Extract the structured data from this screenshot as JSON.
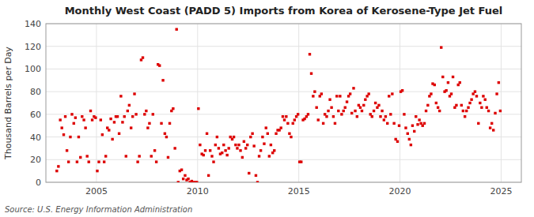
{
  "chart_data": {
    "type": "scatter",
    "title": "Monthly West Coast (PADD 5) Imports from Korea of Kerosene-Type Jet Fuel",
    "y_label": "Thousand Barrels per Day",
    "annotation": "Source: U.S. Energy Information Administration",
    "color": "#dd0000",
    "marker": "square",
    "grid": true,
    "xlim": [
      2002.5,
      2026.0
    ],
    "ylim": [
      0,
      140
    ],
    "xticks": [
      2005,
      2010,
      2015,
      2020,
      2025
    ],
    "yticks": [
      0,
      20,
      40,
      60,
      80,
      100,
      120,
      140
    ],
    "x": [
      2003.04,
      2003.12,
      2003.21,
      2003.29,
      2003.38,
      2003.46,
      2003.54,
      2003.62,
      2003.71,
      2003.79,
      2003.88,
      2003.96,
      2004.04,
      2004.12,
      2004.21,
      2004.29,
      2004.38,
      2004.46,
      2004.54,
      2004.62,
      2004.71,
      2004.79,
      2004.88,
      2004.96,
      2005.04,
      2005.12,
      2005.21,
      2005.29,
      2005.38,
      2005.46,
      2005.54,
      2005.62,
      2005.71,
      2005.79,
      2005.88,
      2005.96,
      2006.04,
      2006.12,
      2006.21,
      2006.29,
      2006.38,
      2006.46,
      2006.54,
      2006.62,
      2006.71,
      2006.79,
      2006.88,
      2006.96,
      2007.04,
      2007.12,
      2007.21,
      2007.29,
      2007.38,
      2007.46,
      2007.54,
      2007.62,
      2007.71,
      2007.79,
      2007.88,
      2007.96,
      2008.04,
      2008.12,
      2008.21,
      2008.29,
      2008.38,
      2008.46,
      2008.54,
      2008.62,
      2008.71,
      2008.79,
      2008.88,
      2008.96,
      2009.04,
      2009.12,
      2009.21,
      2009.29,
      2009.38,
      2009.46,
      2009.54,
      2009.62,
      2009.71,
      2009.79,
      2009.88,
      2009.96,
      2010.04,
      2010.12,
      2010.21,
      2010.29,
      2010.38,
      2010.46,
      2010.54,
      2010.62,
      2010.71,
      2010.79,
      2010.88,
      2010.96,
      2011.04,
      2011.12,
      2011.21,
      2011.29,
      2011.38,
      2011.46,
      2011.54,
      2011.62,
      2011.71,
      2011.79,
      2011.88,
      2011.96,
      2012.04,
      2012.12,
      2012.21,
      2012.29,
      2012.38,
      2012.46,
      2012.54,
      2012.62,
      2012.71,
      2012.79,
      2012.88,
      2012.96,
      2013.04,
      2013.12,
      2013.21,
      2013.29,
      2013.38,
      2013.46,
      2013.54,
      2013.62,
      2013.71,
      2013.79,
      2013.88,
      2013.96,
      2014.04,
      2014.12,
      2014.21,
      2014.29,
      2014.38,
      2014.46,
      2014.54,
      2014.62,
      2014.71,
      2014.79,
      2014.88,
      2014.96,
      2015.04,
      2015.12,
      2015.21,
      2015.29,
      2015.38,
      2015.46,
      2015.54,
      2015.62,
      2015.71,
      2015.79,
      2015.88,
      2015.96,
      2016.04,
      2016.12,
      2016.21,
      2016.29,
      2016.38,
      2016.46,
      2016.54,
      2016.62,
      2016.71,
      2016.79,
      2016.88,
      2016.96,
      2017.04,
      2017.12,
      2017.21,
      2017.29,
      2017.38,
      2017.46,
      2017.54,
      2017.62,
      2017.71,
      2017.79,
      2017.88,
      2017.96,
      2018.04,
      2018.12,
      2018.21,
      2018.29,
      2018.38,
      2018.46,
      2018.54,
      2018.62,
      2018.71,
      2018.79,
      2018.88,
      2018.96,
      2019.04,
      2019.12,
      2019.21,
      2019.29,
      2019.38,
      2019.46,
      2019.54,
      2019.62,
      2019.71,
      2019.79,
      2019.88,
      2019.96,
      2020.04,
      2020.12,
      2020.21,
      2020.29,
      2020.38,
      2020.46,
      2020.54,
      2020.62,
      2020.71,
      2020.79,
      2020.88,
      2020.96,
      2021.04,
      2021.12,
      2021.21,
      2021.29,
      2021.38,
      2021.46,
      2021.54,
      2021.62,
      2021.71,
      2021.79,
      2021.88,
      2021.96,
      2022.04,
      2022.12,
      2022.21,
      2022.29,
      2022.38,
      2022.46,
      2022.54,
      2022.62,
      2022.71,
      2022.79,
      2022.88,
      2022.96,
      2023.04,
      2023.12,
      2023.21,
      2023.29,
      2023.38,
      2023.46,
      2023.54,
      2023.62,
      2023.71,
      2023.79,
      2023.88,
      2023.96,
      2024.04,
      2024.12,
      2024.21,
      2024.29,
      2024.38,
      2024.46,
      2024.54,
      2024.62,
      2024.71,
      2024.79,
      2024.88,
      2024.96
    ],
    "values": [
      10,
      14,
      55,
      48,
      42,
      58,
      28,
      18,
      40,
      60,
      52,
      57,
      18,
      40,
      22,
      58,
      55,
      48,
      23,
      18,
      63,
      55,
      58,
      57,
      10,
      18,
      55,
      42,
      18,
      23,
      48,
      46,
      56,
      38,
      53,
      58,
      58,
      43,
      76,
      53,
      58,
      23,
      63,
      68,
      48,
      58,
      78,
      60,
      18,
      23,
      108,
      110,
      60,
      63,
      48,
      52,
      23,
      60,
      28,
      18,
      104,
      103,
      52,
      90,
      43,
      40,
      22,
      52,
      63,
      65,
      30,
      135,
      0,
      10,
      11,
      3,
      6,
      2,
      3,
      0,
      1,
      0,
      0,
      0,
      65,
      33,
      25,
      24,
      28,
      43,
      6,
      28,
      23,
      18,
      33,
      40,
      30,
      25,
      26,
      33,
      28,
      24,
      30,
      40,
      38,
      40,
      33,
      30,
      33,
      28,
      22,
      36,
      30,
      33,
      8,
      40,
      43,
      32,
      6,
      0,
      23,
      28,
      40,
      34,
      48,
      43,
      23,
      33,
      26,
      28,
      43,
      46,
      46,
      48,
      58,
      55,
      58,
      52,
      43,
      40,
      52,
      55,
      58,
      60,
      18,
      18,
      55,
      56,
      58,
      60,
      113,
      96,
      76,
      80,
      66,
      55,
      76,
      78,
      52,
      60,
      58,
      63,
      73,
      66,
      58,
      52,
      76,
      63,
      76,
      60,
      63,
      66,
      71,
      76,
      78,
      61,
      83,
      63,
      58,
      68,
      66,
      63,
      68,
      73,
      76,
      78,
      60,
      58,
      63,
      70,
      66,
      68,
      58,
      63,
      55,
      58,
      52,
      76,
      60,
      78,
      52,
      38,
      36,
      50,
      80,
      81,
      60,
      48,
      43,
      38,
      33,
      50,
      45,
      58,
      51,
      55,
      52,
      50,
      52,
      63,
      68,
      76,
      78,
      87,
      86,
      70,
      66,
      63,
      119,
      93,
      80,
      81,
      88,
      76,
      78,
      93,
      66,
      68,
      86,
      88,
      68,
      63,
      58,
      63,
      66,
      70,
      73,
      78,
      80,
      76,
      52,
      70,
      66,
      76,
      73,
      66,
      63,
      48,
      52,
      46,
      61,
      78,
      88,
      63
    ]
  }
}
